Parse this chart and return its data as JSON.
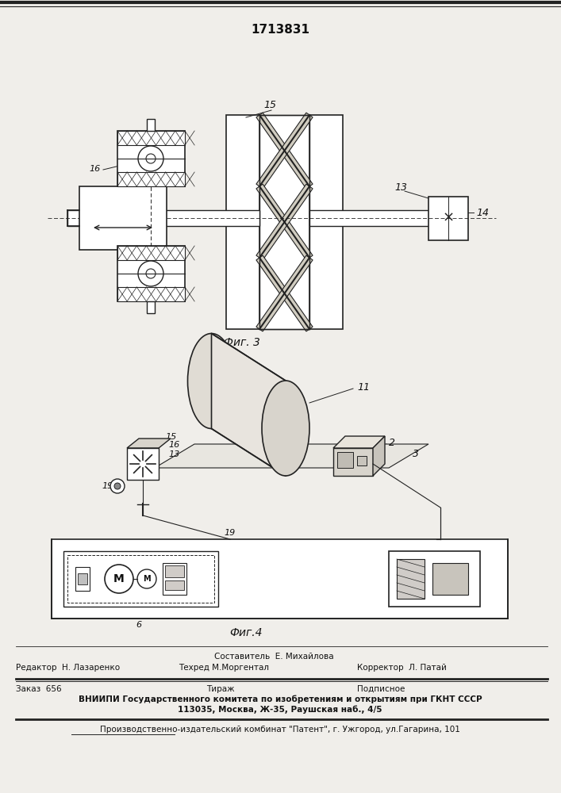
{
  "patent_number": "1713831",
  "fig3_label": "Фиг. 3",
  "fig4_label": "Фиг.4",
  "footer_sestavitel": "Составитель  Е. Михайлова",
  "footer_redaktor": "Редактор  Н. Лазаренко",
  "footer_tehred": "Техред М.Моргентал",
  "footer_korrektor": "Корректор  Л. Патай",
  "footer_zakaz": "Заказ  656",
  "footer_tirazh": "Тираж",
  "footer_podpisnoe": "Подписное",
  "footer_vniipи": "ВНИИПИ Государственного комитета по изобретениям и открытиям при ГКНТ СССР",
  "footer_address": "113035, Москва, Ж-35, Раушская наб., 4/5",
  "footer_kombinat": "Производственно-издательский комбинат \"Патент\", г. Ужгород, ул.Гагарина, 101",
  "bg_color": "#f0eeea",
  "line_color": "#222222",
  "text_color": "#111111",
  "hatch_color": "#333333"
}
